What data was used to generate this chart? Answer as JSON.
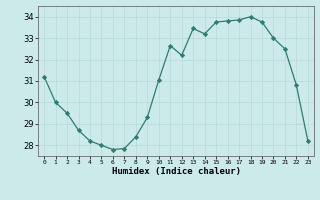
{
  "x": [
    0,
    1,
    2,
    3,
    4,
    5,
    6,
    7,
    8,
    9,
    10,
    11,
    12,
    13,
    14,
    15,
    16,
    17,
    18,
    19,
    20,
    21,
    22,
    23
  ],
  "y": [
    31.2,
    30.0,
    29.5,
    28.7,
    28.2,
    28.0,
    27.8,
    27.85,
    28.4,
    29.3,
    31.05,
    32.65,
    32.2,
    33.45,
    33.2,
    33.75,
    33.8,
    33.85,
    34.0,
    33.75,
    33.0,
    32.5,
    30.8,
    28.2
  ],
  "line_color": "#2e7d6e",
  "marker": "D",
  "marker_size": 2.2,
  "bg_color": "#cceaea",
  "grid_color": "#b8d8d8",
  "xlabel": "Humidex (Indice chaleur)",
  "ylim": [
    27.5,
    34.5
  ],
  "xlim": [
    -0.5,
    23.5
  ],
  "yticks": [
    28,
    29,
    30,
    31,
    32,
    33,
    34
  ]
}
